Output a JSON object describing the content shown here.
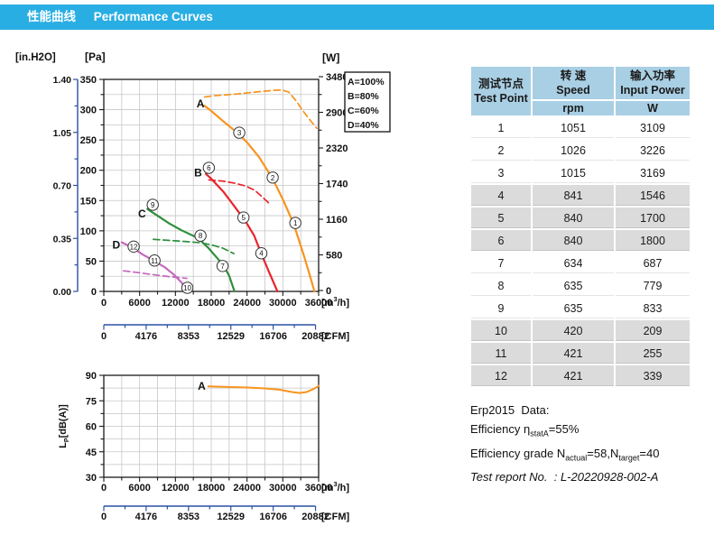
{
  "page": {
    "title_zh": "性能曲线",
    "title_en": "Performance Curves"
  },
  "colors": {
    "header_bg": "#29AEE3",
    "axis_blue": "#2B50A4",
    "orange": "#F7941E",
    "red": "#E8242C",
    "green": "#2F8F3C",
    "purple": "#C568BF",
    "grid": "#c6c6c6",
    "axis_black": "#1a1a1a",
    "table_header_bg": "#A9CFE4",
    "table_alt_row": "#DBDBDB"
  },
  "chart_data": [
    {
      "type": "line",
      "name": "pressure-and-power-curves",
      "x_axis": {
        "unit_parts": [
          "[m",
          "3",
          "/h]"
        ],
        "min": 0,
        "max": 36000,
        "tick_step": 6000,
        "minor_step": 3000,
        "tick_labels": [
          "0",
          "6000",
          "12000",
          "18000",
          "24000",
          "30000",
          "36000"
        ]
      },
      "pa_axis": {
        "unit": "[Pa]",
        "min": 0,
        "max": 350,
        "tick_step": 50,
        "minor_step": 25
      },
      "inh2o_axis": {
        "unit": "[in.H2O]",
        "min": 0,
        "max": 1.4,
        "tick_step": 0.35,
        "tick_labels": [
          "0.00",
          "0.35",
          "0.70",
          "1.05",
          "1.40"
        ]
      },
      "w_axis": {
        "unit": "[W]",
        "min": 0,
        "max": 3480,
        "tick_step": 580,
        "minor_step": 290,
        "tick_labels": [
          "0",
          "580",
          "1160",
          "1740",
          "2320",
          "2900",
          "3480"
        ]
      },
      "cfm_axis": {
        "unit": "[CFM]",
        "tick_labels": [
          "0",
          "4176",
          "8353",
          "12529",
          "16706",
          "20882"
        ],
        "tick_step_cfm": 4176.4,
        "minor_step_cfm": 2088.2,
        "m3h_per_cfm": 1.699
      },
      "legend": [
        {
          "label": "A=100%",
          "color_key": "orange"
        },
        {
          "label": "B=80%",
          "color_key": "red"
        },
        {
          "label": "C=60%",
          "color_key": "green"
        },
        {
          "label": "D=40%",
          "color_key": "purple"
        }
      ],
      "series": [
        {
          "name": "A",
          "axis": "pa",
          "dash": false,
          "color_key": "orange",
          "points": [
            [
              16800,
              307
            ],
            [
              18000,
              298
            ],
            [
              20000,
              281
            ],
            [
              22600,
              260
            ],
            [
              24000,
              246
            ],
            [
              26000,
              222
            ],
            [
              28300,
              186
            ],
            [
              30000,
              152
            ],
            [
              31800,
              112
            ],
            [
              33500,
              60
            ],
            [
              34600,
              24
            ],
            [
              35300,
              0
            ]
          ]
        },
        {
          "name": "A-power",
          "axis": "w",
          "dash": true,
          "color_key": "orange",
          "points": [
            [
              16900,
              3150
            ],
            [
              18500,
              3170
            ],
            [
              20500,
              3185
            ],
            [
              22500,
              3200
            ],
            [
              24500,
              3220
            ],
            [
              26500,
              3240
            ],
            [
              28500,
              3258
            ],
            [
              29800,
              3265
            ],
            [
              31000,
              3230
            ],
            [
              32200,
              3090
            ],
            [
              33400,
              2920
            ],
            [
              34500,
              2780
            ],
            [
              35700,
              2640
            ]
          ]
        },
        {
          "name": "B",
          "axis": "pa",
          "dash": false,
          "color_key": "red",
          "points": [
            [
              17100,
              194
            ],
            [
              18000,
              186
            ],
            [
              20000,
              165
            ],
            [
              22000,
              139
            ],
            [
              23800,
              115
            ],
            [
              25200,
              92
            ],
            [
              26400,
              62
            ],
            [
              27600,
              34
            ],
            [
              29100,
              0
            ]
          ]
        },
        {
          "name": "B-power",
          "axis": "w",
          "dash": true,
          "color_key": "red",
          "points": [
            [
              17600,
              1800
            ],
            [
              20000,
              1780
            ],
            [
              22000,
              1745
            ],
            [
              23800,
              1700
            ],
            [
              25300,
              1630
            ],
            [
              26300,
              1546
            ],
            [
              27800,
              1410
            ]
          ]
        },
        {
          "name": "C",
          "axis": "pa",
          "dash": false,
          "color_key": "green",
          "points": [
            [
              7300,
              136
            ],
            [
              9000,
              125
            ],
            [
              11000,
              112
            ],
            [
              13000,
              101
            ],
            [
              15800,
              88
            ],
            [
              17500,
              72
            ],
            [
              19000,
              55
            ],
            [
              20000,
              44
            ],
            [
              21000,
              26
            ],
            [
              21900,
              0
            ]
          ]
        },
        {
          "name": "C-power",
          "axis": "w",
          "dash": true,
          "color_key": "green",
          "points": [
            [
              8300,
              833
            ],
            [
              11000,
              815
            ],
            [
              14000,
              795
            ],
            [
              16000,
              779
            ],
            [
              18000,
              745
            ],
            [
              20000,
              687
            ],
            [
              21800,
              600
            ]
          ]
        },
        {
          "name": "D",
          "axis": "pa",
          "dash": false,
          "color_key": "purple",
          "points": [
            [
              3000,
              81
            ],
            [
              4700,
              73
            ],
            [
              6500,
              61
            ],
            [
              8500,
              50
            ],
            [
              10200,
              40
            ],
            [
              11700,
              28
            ],
            [
              12800,
              17
            ],
            [
              13600,
              8
            ]
          ]
        },
        {
          "name": "D-power",
          "axis": "w",
          "dash": true,
          "color_key": "purple",
          "points": [
            [
              3300,
              320
            ],
            [
              5500,
              295
            ],
            [
              8500,
              255
            ],
            [
              11000,
              225
            ],
            [
              13900,
              198
            ]
          ]
        }
      ],
      "curve_labels": [
        {
          "text": "A",
          "color_key": "orange",
          "x": 16200,
          "y": 310
        },
        {
          "text": "B",
          "color_key": "red",
          "x": 15800,
          "y": 196
        },
        {
          "text": "C",
          "color_key": "green",
          "x": 6400,
          "y": 128
        },
        {
          "text": "D",
          "color_key": "purple",
          "x": 2100,
          "y": 77
        }
      ],
      "markers": [
        {
          "n": "1",
          "x": 32100,
          "y": 113
        },
        {
          "n": "2",
          "x": 28300,
          "y": 188
        },
        {
          "n": "3",
          "x": 22700,
          "y": 262
        },
        {
          "n": "4",
          "x": 26400,
          "y": 63
        },
        {
          "n": "5",
          "x": 23400,
          "y": 122
        },
        {
          "n": "6",
          "x": 17600,
          "y": 204
        },
        {
          "n": "7",
          "x": 19900,
          "y": 42
        },
        {
          "n": "8",
          "x": 16200,
          "y": 92
        },
        {
          "n": "9",
          "x": 8200,
          "y": 143
        },
        {
          "n": "10",
          "x": 14000,
          "y": 6
        },
        {
          "n": "11",
          "x": 8500,
          "y": 51
        },
        {
          "n": "12",
          "x": 5000,
          "y": 74
        }
      ]
    },
    {
      "type": "line",
      "name": "noise-curve",
      "x_axis": {
        "unit_parts": [
          "[m",
          "3",
          "/h]"
        ],
        "min": 0,
        "max": 36000,
        "tick_step": 6000,
        "minor_step": 3000,
        "tick_labels": [
          "0",
          "6000",
          "12000",
          "18000",
          "24000",
          "30000",
          "36000"
        ]
      },
      "db_axis": {
        "unit_parts": [
          "L",
          "P",
          "[dB(A)]"
        ],
        "min": 30,
        "max": 90,
        "tick_step": 15,
        "minor_step": 7.5,
        "tick_labels": [
          "30",
          "45",
          "60",
          "75",
          "90"
        ]
      },
      "cfm_axis": {
        "unit": "[CFM]",
        "tick_labels": [
          "0",
          "4176",
          "8353",
          "12529",
          "16706",
          "20882"
        ],
        "tick_step_cfm": 4176.4,
        "minor_step_cfm": 2088.2,
        "m3h_per_cfm": 1.699
      },
      "series": [
        {
          "name": "A",
          "dash": false,
          "color_key": "orange",
          "points": [
            [
              17500,
              83.5
            ],
            [
              20000,
              83.2
            ],
            [
              24000,
              82.8
            ],
            [
              27000,
              82.3
            ],
            [
              29500,
              81.5
            ],
            [
              31500,
              80.2
            ],
            [
              32800,
              79.6
            ],
            [
              34000,
              80.2
            ],
            [
              35200,
              82.0
            ],
            [
              36000,
              83.8
            ]
          ]
        }
      ],
      "curve_labels": [
        {
          "text": "A",
          "color_key": "orange",
          "x": 16400,
          "y": 83.5
        }
      ]
    }
  ],
  "table": {
    "header": {
      "col1_zh": "测试节点",
      "col1_en": "Test Point",
      "col2_zh": "转 速",
      "col2_en": "Speed",
      "col2_unit": "rpm",
      "col3_zh": "输入功率",
      "col3_en": "Input Power",
      "col3_unit": "W"
    },
    "rows": [
      [
        "1",
        "1051",
        "3109"
      ],
      [
        "2",
        "1026",
        "3226"
      ],
      [
        "3",
        "1015",
        "3169"
      ],
      [
        "4",
        "841",
        "1546"
      ],
      [
        "5",
        "840",
        "1700"
      ],
      [
        "6",
        "840",
        "1800"
      ],
      [
        "7",
        "634",
        "687"
      ],
      [
        "8",
        "635",
        "779"
      ],
      [
        "9",
        "635",
        "833"
      ],
      [
        "10",
        "420",
        "209"
      ],
      [
        "11",
        "421",
        "255"
      ],
      [
        "12",
        "421",
        "339"
      ]
    ]
  },
  "erp": {
    "line1": "Erp2015  Data:",
    "line2_prefix": "Efficiency η",
    "line2_sub": "statA",
    "line2_suffix": "=55%",
    "line3_prefix": "Efficiency grade N",
    "line3_sub1": "actual",
    "line3_mid": "=58,N",
    "line3_sub2": "target",
    "line3_suffix": "=40",
    "line4": "Test report No.  : L-20220928-002-A"
  }
}
